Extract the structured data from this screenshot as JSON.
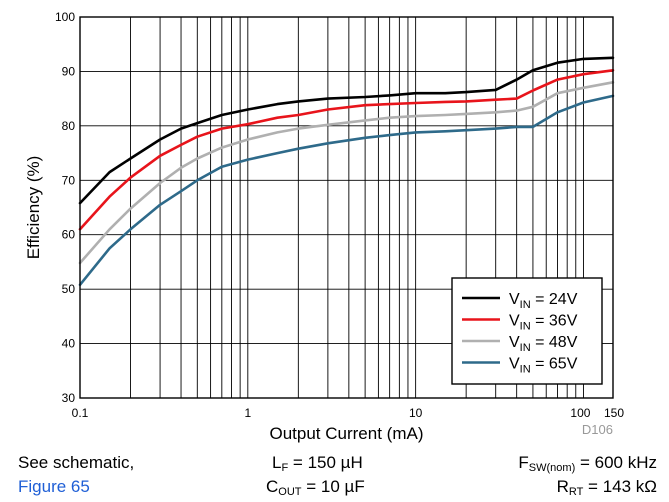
{
  "chart_data": {
    "type": "line",
    "xlabel": "Output Current (mA)",
    "ylabel": "Efficiency (%)",
    "x_scale": "log",
    "xlim": [
      0.1,
      150
    ],
    "ylim": [
      30,
      100
    ],
    "x_ticks": [
      {
        "value": 0.1,
        "label": "0.1"
      },
      {
        "value": 1,
        "label": "1"
      },
      {
        "value": 10,
        "label": "10"
      },
      {
        "value": 100,
        "label": "100"
      },
      {
        "value": 150,
        "label": "150"
      }
    ],
    "y_ticks": [
      30,
      40,
      50,
      60,
      70,
      80,
      90,
      100
    ],
    "grid": true,
    "legend_position": "bottom-right",
    "figure_id": "D106",
    "series": [
      {
        "name_main": "V",
        "name_sub": "IN",
        "name_tail": " = 24V",
        "color": "#000000",
        "x": [
          0.1,
          0.15,
          0.2,
          0.3,
          0.4,
          0.5,
          0.7,
          1,
          1.5,
          2,
          3,
          5,
          7,
          10,
          15,
          20,
          30,
          40,
          50,
          70,
          100,
          150
        ],
        "y": [
          65.8,
          71.5,
          74.0,
          77.5,
          79.5,
          80.5,
          82.0,
          83.0,
          84.0,
          84.5,
          85.0,
          85.3,
          85.6,
          86.0,
          86.0,
          86.2,
          86.6,
          88.5,
          90.2,
          91.6,
          92.3,
          92.5
        ]
      },
      {
        "name_main": "V",
        "name_sub": "IN",
        "name_tail": " = 36V",
        "color": "#e8141b",
        "x": [
          0.1,
          0.15,
          0.2,
          0.3,
          0.4,
          0.5,
          0.7,
          1,
          1.5,
          2,
          3,
          5,
          7,
          10,
          15,
          20,
          30,
          40,
          50,
          70,
          100,
          150
        ],
        "y": [
          61.0,
          67.0,
          70.5,
          74.5,
          76.5,
          78.0,
          79.5,
          80.3,
          81.5,
          82.0,
          83.0,
          83.8,
          84.0,
          84.2,
          84.4,
          84.5,
          84.8,
          85.0,
          86.5,
          88.5,
          89.5,
          90.2
        ]
      },
      {
        "name_main": "V",
        "name_sub": "IN",
        "name_tail": " = 48V",
        "color": "#b0b0b0",
        "x": [
          0.1,
          0.15,
          0.2,
          0.3,
          0.4,
          0.5,
          0.7,
          1,
          1.5,
          2,
          3,
          5,
          7,
          10,
          15,
          20,
          30,
          40,
          50,
          70,
          100,
          150
        ],
        "y": [
          54.8,
          61.0,
          64.8,
          69.5,
          72.3,
          74.0,
          76.0,
          77.5,
          78.8,
          79.5,
          80.2,
          81.0,
          81.5,
          81.8,
          82.0,
          82.2,
          82.5,
          82.8,
          83.5,
          86.0,
          87.0,
          88.0
        ]
      },
      {
        "name_main": "V",
        "name_sub": "IN",
        "name_tail": " = 65V",
        "color": "#2e6a8a",
        "x": [
          0.1,
          0.15,
          0.2,
          0.3,
          0.4,
          0.5,
          0.7,
          1,
          1.5,
          2,
          3,
          5,
          7,
          10,
          15,
          20,
          30,
          40,
          50,
          70,
          100,
          150
        ],
        "y": [
          50.8,
          57.5,
          61.0,
          65.5,
          68.0,
          70.0,
          72.5,
          73.8,
          75.0,
          75.8,
          76.8,
          77.8,
          78.3,
          78.8,
          79.0,
          79.2,
          79.5,
          79.8,
          79.8,
          82.5,
          84.3,
          85.5
        ]
      }
    ]
  },
  "caption": {
    "left_line1": "See schematic,",
    "left_link": "Figure 65",
    "mid_line1_main": "L",
    "mid_line1_sub": "F",
    "mid_line1_tail": " = 150 µH",
    "mid_line2_main": "C",
    "mid_line2_sub": "OUT",
    "mid_line2_tail": " = 10 µF",
    "right_line1_main": "F",
    "right_line1_sub": "SW(nom)",
    "right_line1_tail": " = 600 kHz",
    "right_line2_main": "R",
    "right_line2_sub": "RT",
    "right_line2_tail": " = 143 kΩ"
  }
}
